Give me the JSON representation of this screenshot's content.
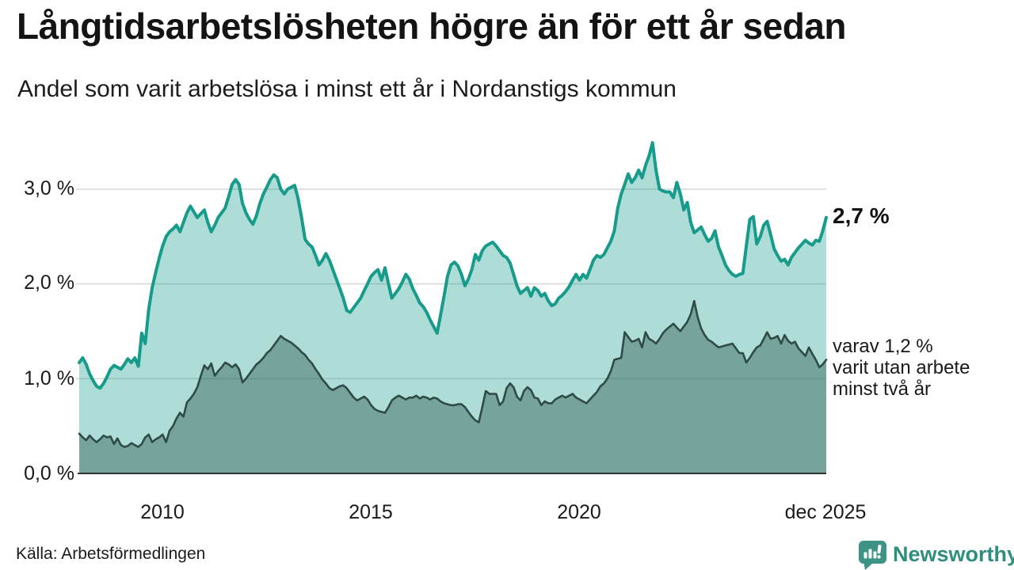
{
  "header": {
    "title": "Långtidsarbetslösheten högre än för ett år sedan",
    "subtitle": "Andel som varit arbetslösa i minst ett år i Nordanstigs kommun"
  },
  "colors": {
    "line_primary": "#179b8b",
    "fill_primary": "rgba(23,155,139,0.35)",
    "line_secondary": "#2e4b46",
    "fill_secondary": "rgba(30,70,64,0.38)",
    "gridline": "#d9d9d9",
    "axis": "#333333",
    "brand_teal": "#2f8e7e",
    "logo_bubble": "#3d9384"
  },
  "annotations": {
    "last_value_label": "2,7 %",
    "side_note_lines": "varav 1,2 %\nvarit utan arbete\nminst två år"
  },
  "footer": {
    "source": "Källa: Arbetsförmedlingen",
    "brand": "Newsworthy"
  },
  "chart_data": {
    "type": "area",
    "x_unit": "month",
    "x_start": "2008-01",
    "x_end": "2025-12",
    "y_unit": "%",
    "ylim": [
      0,
      3.6
    ],
    "grid": "horizontal",
    "y_ticks": [
      {
        "value": 0,
        "label": "0,0 %"
      },
      {
        "value": 1,
        "label": "1,0 %"
      },
      {
        "value": 2,
        "label": "2,0 %"
      },
      {
        "value": 3,
        "label": "3,0 %"
      }
    ],
    "x_ticks": [
      {
        "month_index": 24,
        "label": "2010"
      },
      {
        "month_index": 84,
        "label": "2015"
      },
      {
        "month_index": 144,
        "label": "2020"
      },
      {
        "month_index": 215,
        "label": "dec 2025"
      }
    ],
    "series": [
      {
        "name": "Andel som varit arbetslösa i minst ett år",
        "end_value": 2.7,
        "values": [
          1.17,
          1.22,
          1.15,
          1.05,
          0.98,
          0.92,
          0.9,
          0.95,
          1.02,
          1.1,
          1.14,
          1.12,
          1.1,
          1.15,
          1.21,
          1.17,
          1.22,
          1.13,
          1.48,
          1.37,
          1.73,
          1.96,
          2.12,
          2.27,
          2.4,
          2.5,
          2.55,
          2.58,
          2.62,
          2.55,
          2.65,
          2.75,
          2.82,
          2.76,
          2.7,
          2.74,
          2.78,
          2.65,
          2.55,
          2.62,
          2.7,
          2.75,
          2.8,
          2.92,
          3.05,
          3.1,
          3.05,
          2.85,
          2.75,
          2.68,
          2.63,
          2.72,
          2.85,
          2.95,
          3.02,
          3.1,
          3.15,
          3.12,
          3.0,
          2.95,
          3.0,
          3.02,
          3.04,
          2.9,
          2.7,
          2.47,
          2.42,
          2.39,
          2.3,
          2.2,
          2.25,
          2.32,
          2.25,
          2.15,
          2.05,
          1.95,
          1.85,
          1.72,
          1.7,
          1.75,
          1.8,
          1.85,
          1.93,
          2.0,
          2.08,
          2.12,
          2.15,
          2.04,
          2.17,
          2.0,
          1.85,
          1.9,
          1.95,
          2.02,
          2.1,
          2.05,
          1.95,
          1.88,
          1.8,
          1.76,
          1.7,
          1.62,
          1.55,
          1.48,
          1.67,
          1.87,
          2.08,
          2.2,
          2.23,
          2.19,
          2.1,
          1.98,
          2.05,
          2.15,
          2.31,
          2.25,
          2.35,
          2.4,
          2.42,
          2.44,
          2.4,
          2.35,
          2.3,
          2.28,
          2.22,
          2.1,
          1.98,
          1.9,
          1.93,
          1.96,
          1.87,
          1.96,
          1.93,
          1.87,
          1.9,
          1.82,
          1.77,
          1.79,
          1.85,
          1.88,
          1.92,
          1.97,
          2.04,
          2.1,
          2.04,
          2.1,
          2.06,
          2.15,
          2.25,
          2.3,
          2.28,
          2.31,
          2.38,
          2.45,
          2.56,
          2.8,
          2.95,
          3.05,
          3.16,
          3.07,
          3.12,
          3.2,
          3.12,
          3.25,
          3.35,
          3.49,
          3.2,
          3.0,
          2.98,
          2.97,
          2.97,
          2.91,
          3.07,
          2.95,
          2.78,
          2.86,
          2.65,
          2.54,
          2.57,
          2.6,
          2.52,
          2.45,
          2.48,
          2.56,
          2.39,
          2.3,
          2.2,
          2.14,
          2.1,
          2.08,
          2.1,
          2.11,
          2.4,
          2.68,
          2.71,
          2.42,
          2.5,
          2.62,
          2.66,
          2.52,
          2.37,
          2.3,
          2.24,
          2.26,
          2.2,
          2.28,
          2.33,
          2.38,
          2.42,
          2.46,
          2.43,
          2.41,
          2.46,
          2.45,
          2.56,
          2.7
        ]
      },
      {
        "name": "varav utan arbete minst två år",
        "end_value": 1.2,
        "values": [
          0.42,
          0.38,
          0.35,
          0.4,
          0.36,
          0.33,
          0.36,
          0.4,
          0.38,
          0.39,
          0.31,
          0.37,
          0.3,
          0.28,
          0.29,
          0.32,
          0.3,
          0.28,
          0.31,
          0.38,
          0.41,
          0.33,
          0.36,
          0.38,
          0.41,
          0.33,
          0.45,
          0.5,
          0.58,
          0.64,
          0.6,
          0.75,
          0.79,
          0.84,
          0.91,
          1.03,
          1.14,
          1.1,
          1.16,
          1.03,
          1.08,
          1.12,
          1.17,
          1.15,
          1.12,
          1.15,
          1.1,
          0.96,
          1.0,
          1.05,
          1.1,
          1.15,
          1.18,
          1.22,
          1.27,
          1.3,
          1.35,
          1.4,
          1.45,
          1.42,
          1.4,
          1.38,
          1.35,
          1.32,
          1.28,
          1.25,
          1.2,
          1.16,
          1.1,
          1.05,
          0.99,
          0.95,
          0.9,
          0.88,
          0.9,
          0.92,
          0.93,
          0.9,
          0.85,
          0.8,
          0.77,
          0.79,
          0.81,
          0.78,
          0.72,
          0.68,
          0.66,
          0.65,
          0.64,
          0.7,
          0.77,
          0.8,
          0.82,
          0.8,
          0.78,
          0.8,
          0.8,
          0.82,
          0.79,
          0.81,
          0.8,
          0.78,
          0.8,
          0.79,
          0.76,
          0.74,
          0.73,
          0.72,
          0.72,
          0.73,
          0.73,
          0.7,
          0.65,
          0.6,
          0.56,
          0.54,
          0.7,
          0.87,
          0.84,
          0.84,
          0.84,
          0.72,
          0.76,
          0.9,
          0.95,
          0.91,
          0.81,
          0.77,
          0.87,
          0.91,
          0.88,
          0.8,
          0.79,
          0.72,
          0.76,
          0.74,
          0.74,
          0.78,
          0.8,
          0.82,
          0.8,
          0.82,
          0.84,
          0.8,
          0.78,
          0.76,
          0.74,
          0.78,
          0.82,
          0.86,
          0.92,
          0.95,
          1.0,
          1.08,
          1.2,
          1.21,
          1.22,
          1.49,
          1.44,
          1.39,
          1.4,
          1.42,
          1.33,
          1.49,
          1.42,
          1.4,
          1.37,
          1.42,
          1.48,
          1.52,
          1.55,
          1.58,
          1.54,
          1.5,
          1.55,
          1.6,
          1.68,
          1.82,
          1.65,
          1.53,
          1.46,
          1.41,
          1.39,
          1.36,
          1.33,
          1.34,
          1.35,
          1.36,
          1.37,
          1.32,
          1.27,
          1.27,
          1.17,
          1.22,
          1.28,
          1.33,
          1.35,
          1.42,
          1.49,
          1.42,
          1.43,
          1.45,
          1.37,
          1.46,
          1.4,
          1.37,
          1.39,
          1.32,
          1.28,
          1.24,
          1.33,
          1.26,
          1.2,
          1.12,
          1.15,
          1.2
        ]
      }
    ]
  }
}
